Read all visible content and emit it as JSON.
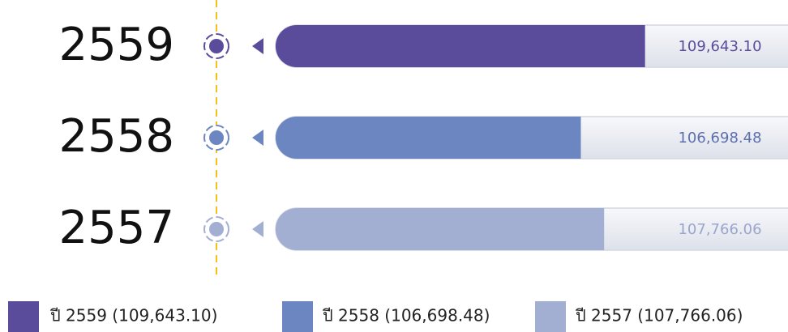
{
  "chart_data": {
    "type": "bar",
    "orientation": "horizontal",
    "categories": [
      "2559",
      "2558",
      "2557"
    ],
    "values": [
      109643.1,
      106698.48,
      107766.06
    ],
    "value_labels": [
      "109,643.10",
      "106,698.48",
      "107,766.06"
    ],
    "colors": [
      "#5b4b9b",
      "#6b86c0",
      "#a3aed3"
    ],
    "xlim": [
      92700,
      116200
    ],
    "legend": [
      "ปี 2559 (109,643.10)",
      "ปี 2558 (106,698.48)",
      "ปี 2557 (107,766.06)"
    ]
  }
}
